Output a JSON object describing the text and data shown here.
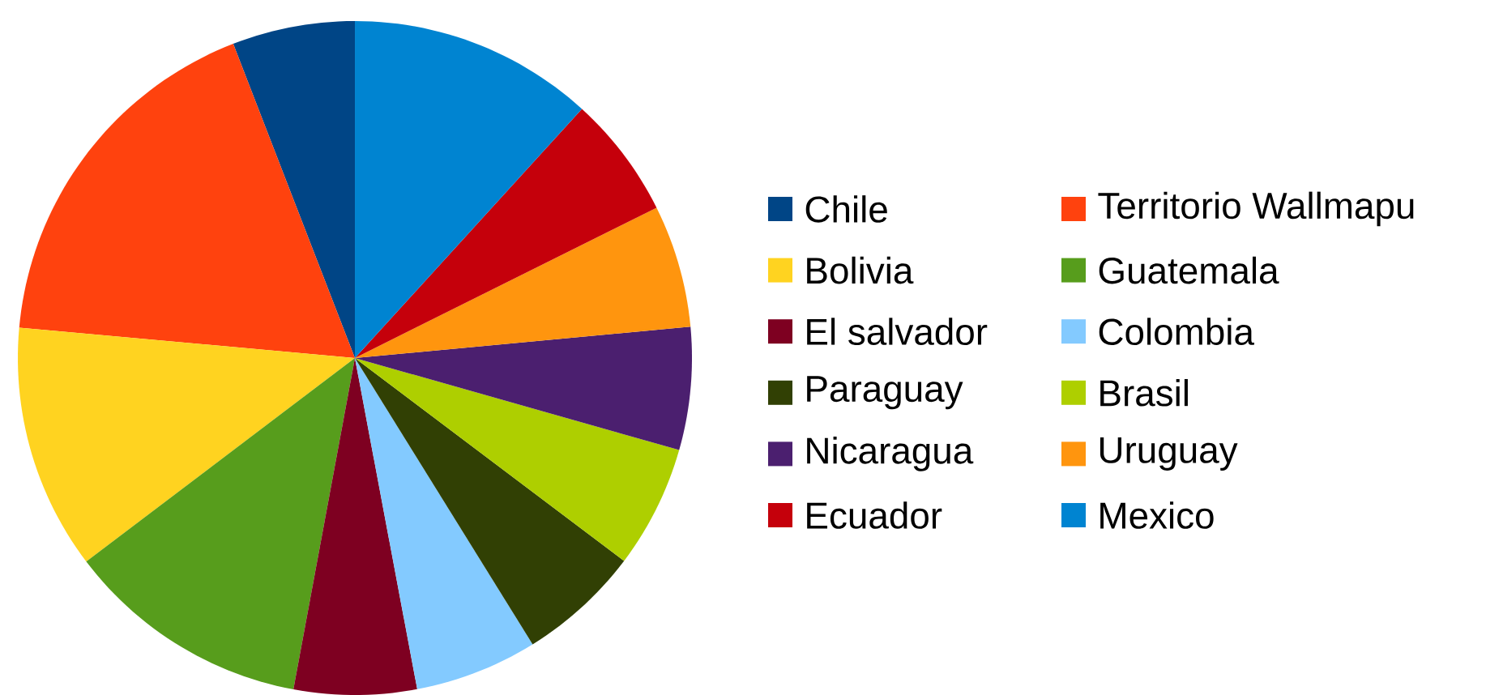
{
  "chart_data": {
    "type": "pie",
    "categories": [
      "Chile",
      "Territorio Wallmapu",
      "Bolivia",
      "Guatemala",
      "El salvador",
      "Colombia",
      "Paraguay",
      "Brasil",
      "Nicaragua",
      "Uruguay",
      "Ecuador",
      "Mexico"
    ],
    "values": [
      5.88,
      17.68,
      11.76,
      11.76,
      5.88,
      5.88,
      5.88,
      5.88,
      5.88,
      5.88,
      5.88,
      11.76
    ],
    "colors": [
      "#004586",
      "#ff420e",
      "#ffd320",
      "#579d1c",
      "#7e0021",
      "#83caff",
      "#314004",
      "#aecf00",
      "#4b1f6f",
      "#ff950e",
      "#c5000b",
      "#0084d1"
    ],
    "legend": "right"
  }
}
